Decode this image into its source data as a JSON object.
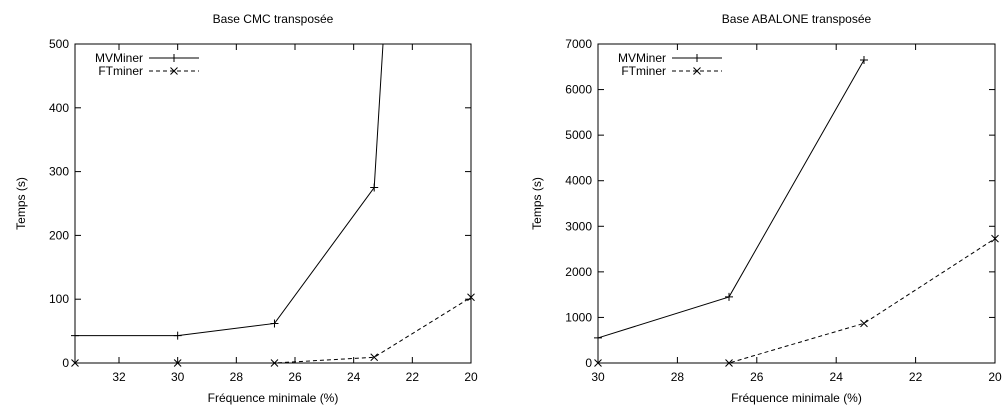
{
  "chart_data": [
    {
      "type": "line",
      "title": "Base CMC transposée",
      "xlabel": "Fréquence minimale (%)",
      "ylabel": "Temps (s)",
      "xlim": [
        33.5,
        20
      ],
      "ylim": [
        0,
        500
      ],
      "x_reversed": true,
      "xticks": [
        32,
        30,
        28,
        26,
        24,
        22,
        20
      ],
      "yticks": [
        0,
        100,
        200,
        300,
        400,
        500
      ],
      "legend_position": "top-left",
      "series": [
        {
          "name": "MVMiner",
          "marker": "plus",
          "line": "solid",
          "x": [
            33.5,
            30,
            26.7,
            23.3,
            23.0
          ],
          "y": [
            43,
            43,
            62,
            275,
            500
          ]
        },
        {
          "name": "FTminer",
          "marker": "cross",
          "line": "dashed",
          "x": [
            33.5,
            30,
            26.7,
            23.3,
            20
          ],
          "y": [
            0,
            0,
            0,
            9,
            103
          ]
        }
      ]
    },
    {
      "type": "line",
      "title": "Base ABALONE transposée",
      "xlabel": "Fréquence minimale (%)",
      "ylabel": "Temps (s)",
      "xlim": [
        30,
        20
      ],
      "ylim": [
        0,
        7000
      ],
      "x_reversed": true,
      "xticks": [
        30,
        28,
        26,
        24,
        22,
        20
      ],
      "yticks": [
        0,
        1000,
        2000,
        3000,
        4000,
        5000,
        6000,
        7000
      ],
      "legend_position": "top-left",
      "series": [
        {
          "name": "MVMiner",
          "marker": "plus",
          "line": "solid",
          "x": [
            30,
            26.7,
            23.3
          ],
          "y": [
            550,
            1450,
            6650
          ]
        },
        {
          "name": "FTminer",
          "marker": "cross",
          "line": "dashed",
          "x": [
            30,
            26.7,
            23.3,
            20
          ],
          "y": [
            0,
            0,
            870,
            2730
          ]
        }
      ]
    }
  ]
}
